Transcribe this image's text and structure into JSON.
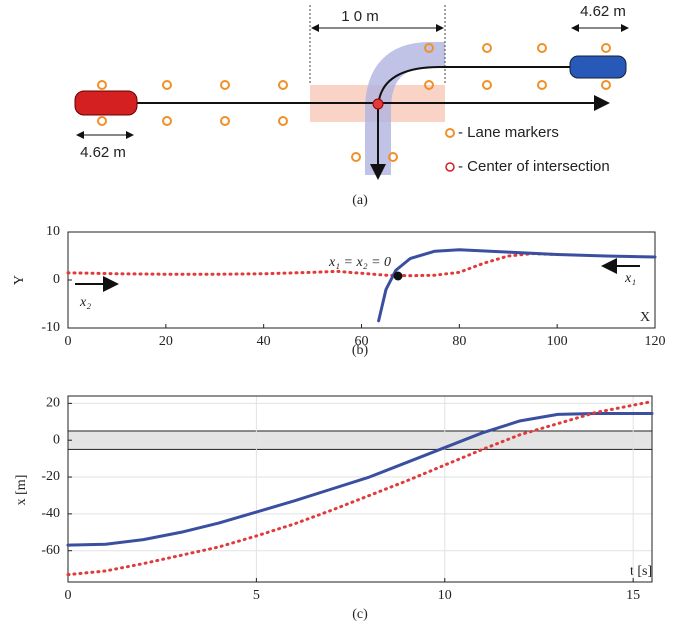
{
  "diagram": {
    "width_label": "1 0 m",
    "car_length_right": "4.62 m",
    "car_length_left": "4.62 m",
    "legend": [
      "- Lane markers",
      "- Center of intersection"
    ],
    "caption": "(a)"
  },
  "chart_data": [
    {
      "type": "line",
      "caption": "(b)",
      "xlabel": "X",
      "ylabel": "Y",
      "annotations": [
        "x₁ = x₂ = 0",
        "x₂",
        "x₁"
      ],
      "xlim": [
        0,
        120
      ],
      "ylim": [
        -10,
        10
      ],
      "xticks": [
        0,
        20,
        40,
        60,
        80,
        100,
        120
      ],
      "yticks": [
        -10,
        0,
        10
      ],
      "grid": false,
      "series": [
        {
          "color": "#e03a3a",
          "style": "dotted",
          "x": [
            0,
            10,
            20,
            30,
            40,
            50,
            55,
            60,
            65,
            70,
            75,
            80,
            85,
            90,
            95,
            100
          ],
          "values": [
            1.5,
            1.3,
            1.2,
            1.2,
            1.3,
            1.6,
            1.8,
            1.4,
            1.0,
            0.9,
            1.0,
            1.6,
            3.5,
            5.0,
            5.5,
            5.3
          ]
        },
        {
          "color": "#3b4fa0",
          "style": "solid",
          "x": [
            63.5,
            65,
            67,
            70,
            75,
            80,
            90,
            100,
            110,
            120
          ],
          "values": [
            -8.5,
            -2,
            2,
            4.5,
            6,
            6.3,
            5.8,
            5.3,
            5.0,
            4.8
          ]
        }
      ]
    },
    {
      "type": "line",
      "caption": "(c)",
      "xlabel": "t [s]",
      "ylabel": "x [m]",
      "xlim": [
        0,
        15.5
      ],
      "ylim": [
        -77,
        24
      ],
      "xticks": [
        0,
        5,
        10,
        15
      ],
      "yticks": [
        -60,
        -40,
        -20,
        0,
        20
      ],
      "grid": true,
      "band": [
        -5,
        5
      ],
      "series": [
        {
          "color": "#3b4fa0",
          "style": "solid",
          "x": [
            0,
            1,
            2,
            3,
            4,
            5,
            6,
            7,
            8,
            9,
            10,
            11,
            12,
            13,
            14,
            15.5
          ],
          "values": [
            -57,
            -56.5,
            -54,
            -50,
            -45,
            -39,
            -33,
            -26.5,
            -20,
            -12,
            -4,
            4,
            10.5,
            14,
            14.5,
            14.5
          ]
        },
        {
          "color": "#e03a3a",
          "style": "dotted",
          "x": [
            0,
            1,
            2,
            3,
            4,
            5,
            6,
            7,
            8,
            9,
            10,
            11,
            12,
            13,
            14,
            15.5
          ],
          "values": [
            -73,
            -71,
            -67,
            -62.5,
            -58,
            -52,
            -45.5,
            -38,
            -30,
            -22,
            -13.5,
            -5,
            3,
            9,
            15,
            21
          ]
        }
      ]
    }
  ]
}
